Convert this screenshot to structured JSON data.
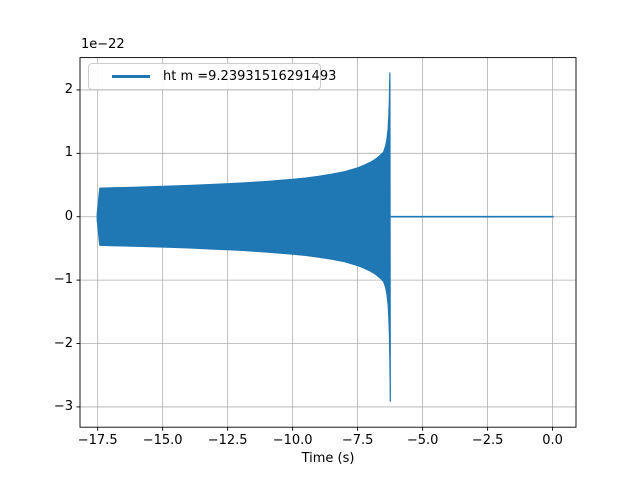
{
  "figure": {
    "background": "#ffffff",
    "offset_text": "1e−22",
    "xlabel": "Time (s)",
    "legend": {
      "label": "ht m =9.23931516291493",
      "line_color": "#1f77b4",
      "position": "upper left"
    },
    "axes": {
      "x_tick_labels": [
        "−17.5",
        "−15.0",
        "−12.5",
        "−10.0",
        "−7.5",
        "−5.0",
        "−2.5",
        "0.0"
      ],
      "y_tick_labels": [
        "2",
        "1",
        "0",
        "−1",
        "−2",
        "−3"
      ],
      "grid_color": "#b0b0b0",
      "spine_color": "#000000",
      "tick_color": "#000000"
    }
  },
  "chart_data": {
    "type": "line",
    "title": "",
    "xlabel": "Time (s)",
    "ylabel": "",
    "y_offset_factor": "1e−22",
    "xlim": [
      -18.18,
      0.9
    ],
    "ylim": [
      -3.32,
      2.51
    ],
    "x_ticks": [
      -17.5,
      -15.0,
      -12.5,
      -10.0,
      -7.5,
      -5.0,
      -2.5,
      0.0
    ],
    "y_ticks": [
      2,
      1,
      0,
      -1,
      -2,
      -3
    ],
    "grid": true,
    "legend_position": "upper left",
    "series": [
      {
        "name": "ht m =9.23931516291493",
        "color": "#1f77b4",
        "kind": "dense-oscillation-envelope",
        "description": "Gravitational-wave chirp strain vs time; oscillation too dense to resolve, drawn as filled envelope. Amplitudes in units of 1e-22.",
        "envelope_t": [
          -17.52,
          -17.42,
          -17.0,
          -16.0,
          -15.0,
          -14.0,
          -13.0,
          -12.0,
          -11.0,
          -10.0,
          -9.5,
          -9.0,
          -8.5,
          -8.0,
          -7.5,
          -7.2,
          -7.0,
          -6.8,
          -6.65,
          -6.5,
          -6.42,
          -6.37,
          -6.33,
          -6.3,
          -6.28,
          -6.27,
          -6.26
        ],
        "envelope_amp": [
          0.05,
          0.45,
          0.455,
          0.466,
          0.478,
          0.492,
          0.51,
          0.53,
          0.556,
          0.59,
          0.61,
          0.637,
          0.67,
          0.71,
          0.77,
          0.82,
          0.86,
          0.91,
          0.96,
          1.02,
          1.12,
          1.23,
          1.38,
          1.58,
          1.85,
          2.05,
          2.27
        ],
        "merger": {
          "t_peak": -6.26,
          "peak": 2.27,
          "t_trough": -6.245,
          "trough": -2.91
        },
        "post_merger": {
          "t_start": -6.23,
          "t_end": 0.04,
          "value": 0
        },
        "onset": {
          "t": -17.52,
          "amp": 0.05
        }
      }
    ]
  }
}
